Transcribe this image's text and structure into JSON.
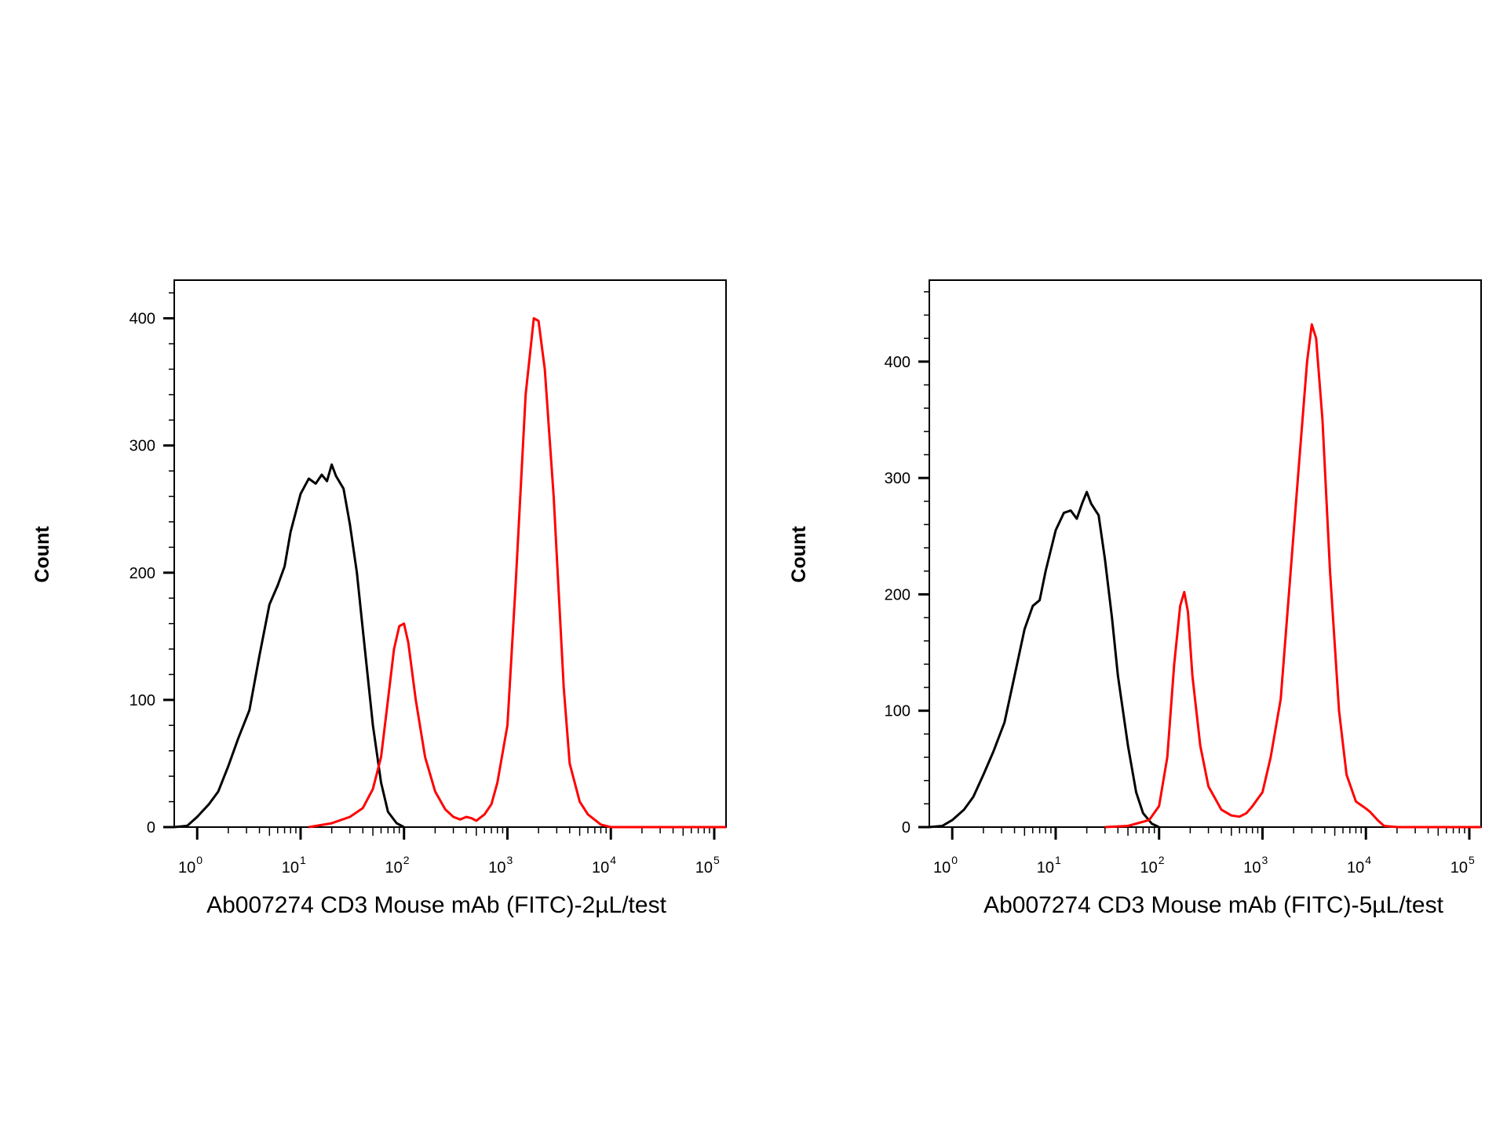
{
  "chart_data": [
    {
      "type": "line",
      "title": "",
      "xlabel": "Ab007274 CD3 Mouse mAb (FITC)-2µL/test",
      "ylabel": "Count",
      "xscale": "log",
      "xlim": [
        0.6,
        130000
      ],
      "ylim": [
        0,
        430
      ],
      "yticks": [
        0,
        100,
        200,
        300,
        400
      ],
      "xticks": [
        {
          "value": 1,
          "base": "10",
          "exp": "0"
        },
        {
          "value": 10,
          "base": "10",
          "exp": "1"
        },
        {
          "value": 100,
          "base": "10",
          "exp": "2"
        },
        {
          "value": 1000,
          "base": "10",
          "exp": "3"
        },
        {
          "value": 10000,
          "base": "10",
          "exp": "4"
        },
        {
          "value": 100000,
          "base": "10",
          "exp": "5"
        }
      ],
      "grid": false,
      "series": [
        {
          "color": "#000000",
          "points": [
            [
              0.6,
              0
            ],
            [
              0.8,
              1
            ],
            [
              1.0,
              8
            ],
            [
              1.3,
              18
            ],
            [
              1.6,
              28
            ],
            [
              2.0,
              48
            ],
            [
              2.5,
              70
            ],
            [
              3.2,
              92
            ],
            [
              4.0,
              135
            ],
            [
              5.0,
              175
            ],
            [
              6.0,
              190
            ],
            [
              7.0,
              205
            ],
            [
              8.0,
              232
            ],
            [
              10,
              262
            ],
            [
              12,
              274
            ],
            [
              14,
              270
            ],
            [
              16,
              277
            ],
            [
              18,
              272
            ],
            [
              20,
              285
            ],
            [
              22,
              276
            ],
            [
              26,
              266
            ],
            [
              30,
              238
            ],
            [
              35,
              200
            ],
            [
              40,
              155
            ],
            [
              50,
              80
            ],
            [
              60,
              35
            ],
            [
              70,
              12
            ],
            [
              85,
              3
            ],
            [
              100,
              0
            ]
          ]
        },
        {
          "color": "#ff0000",
          "points": [
            [
              12,
              0
            ],
            [
              20,
              3
            ],
            [
              30,
              8
            ],
            [
              40,
              15
            ],
            [
              50,
              30
            ],
            [
              60,
              55
            ],
            [
              70,
              100
            ],
            [
              80,
              140
            ],
            [
              90,
              158
            ],
            [
              100,
              160
            ],
            [
              110,
              145
            ],
            [
              130,
              100
            ],
            [
              160,
              55
            ],
            [
              200,
              28
            ],
            [
              250,
              14
            ],
            [
              300,
              8
            ],
            [
              350,
              6
            ],
            [
              400,
              8
            ],
            [
              450,
              7
            ],
            [
              500,
              5
            ],
            [
              600,
              10
            ],
            [
              700,
              18
            ],
            [
              800,
              35
            ],
            [
              1000,
              80
            ],
            [
              1200,
              190
            ],
            [
              1500,
              340
            ],
            [
              1800,
              400
            ],
            [
              2000,
              398
            ],
            [
              2300,
              360
            ],
            [
              2800,
              260
            ],
            [
              3500,
              110
            ],
            [
              4000,
              50
            ],
            [
              5000,
              20
            ],
            [
              6000,
              10
            ],
            [
              8000,
              2
            ],
            [
              10000,
              0
            ],
            [
              130000,
              0
            ]
          ]
        }
      ]
    },
    {
      "type": "line",
      "title": "",
      "xlabel": "Ab007274 CD3 Mouse mAb (FITC)-5µL/test",
      "ylabel": "Count",
      "xscale": "log",
      "xlim": [
        0.6,
        130000
      ],
      "ylim": [
        0,
        470
      ],
      "yticks": [
        0,
        100,
        200,
        300,
        400
      ],
      "xticks": [
        {
          "value": 1,
          "base": "10",
          "exp": "0"
        },
        {
          "value": 10,
          "base": "10",
          "exp": "1"
        },
        {
          "value": 100,
          "base": "10",
          "exp": "2"
        },
        {
          "value": 1000,
          "base": "10",
          "exp": "3"
        },
        {
          "value": 10000,
          "base": "10",
          "exp": "4"
        },
        {
          "value": 100000,
          "base": "10",
          "exp": "5"
        }
      ],
      "grid": false,
      "series": [
        {
          "color": "#000000",
          "points": [
            [
              0.6,
              0
            ],
            [
              0.8,
              1
            ],
            [
              1.0,
              6
            ],
            [
              1.3,
              15
            ],
            [
              1.6,
              26
            ],
            [
              2.0,
              45
            ],
            [
              2.5,
              65
            ],
            [
              3.2,
              90
            ],
            [
              4.0,
              130
            ],
            [
              5.0,
              170
            ],
            [
              6.0,
              190
            ],
            [
              7.0,
              195
            ],
            [
              8.0,
              220
            ],
            [
              10,
              255
            ],
            [
              12,
              270
            ],
            [
              14,
              272
            ],
            [
              16,
              265
            ],
            [
              18,
              278
            ],
            [
              20,
              288
            ],
            [
              22,
              278
            ],
            [
              26,
              268
            ],
            [
              30,
              230
            ],
            [
              35,
              180
            ],
            [
              40,
              130
            ],
            [
              50,
              70
            ],
            [
              60,
              30
            ],
            [
              70,
              12
            ],
            [
              85,
              3
            ],
            [
              100,
              0
            ]
          ]
        },
        {
          "color": "#ff0000",
          "points": [
            [
              30,
              0
            ],
            [
              50,
              1
            ],
            [
              80,
              6
            ],
            [
              100,
              18
            ],
            [
              120,
              60
            ],
            [
              140,
              140
            ],
            [
              160,
              190
            ],
            [
              175,
              202
            ],
            [
              190,
              185
            ],
            [
              210,
              130
            ],
            [
              250,
              70
            ],
            [
              300,
              35
            ],
            [
              400,
              15
            ],
            [
              500,
              10
            ],
            [
              600,
              9
            ],
            [
              700,
              12
            ],
            [
              800,
              18
            ],
            [
              1000,
              30
            ],
            [
              1200,
              60
            ],
            [
              1500,
              110
            ],
            [
              1800,
              200
            ],
            [
              2200,
              300
            ],
            [
              2700,
              400
            ],
            [
              3000,
              432
            ],
            [
              3300,
              420
            ],
            [
              3800,
              350
            ],
            [
              4500,
              220
            ],
            [
              5500,
              100
            ],
            [
              6500,
              45
            ],
            [
              8000,
              22
            ],
            [
              10000,
              16
            ],
            [
              11000,
              13
            ],
            [
              13000,
              6
            ],
            [
              15000,
              1
            ],
            [
              20000,
              0
            ],
            [
              130000,
              0
            ]
          ]
        }
      ]
    }
  ]
}
